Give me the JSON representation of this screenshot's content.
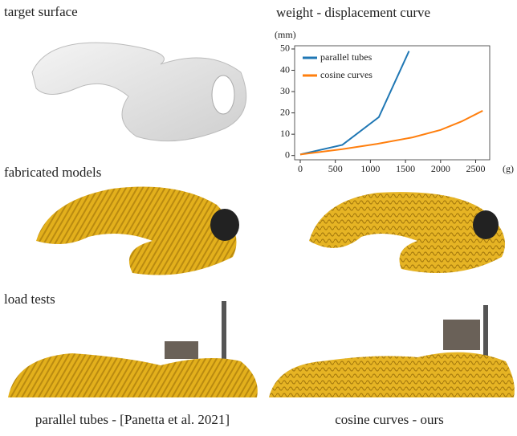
{
  "labels": {
    "target_surface": "target surface",
    "fabricated_models": "fabricated models",
    "load_tests": "load tests",
    "caption_left": "parallel tubes - [Panetta et al. 2021]",
    "caption_right": "cosine curves - ours"
  },
  "chart_data": {
    "type": "line",
    "title": "weight - displacement curve",
    "y_label": "(mm)",
    "x_label": "(g)",
    "xlim": [
      -80,
      2700
    ],
    "ylim": [
      -2,
      51.5
    ],
    "xticks": [
      0,
      500,
      1000,
      1500,
      2000,
      2500
    ],
    "yticks": [
      0,
      10,
      20,
      30,
      40,
      50
    ],
    "legend": "upper left",
    "series": [
      {
        "name": "parallel tubes",
        "color": "#1f77b4",
        "x": [
          0,
          600,
          1120,
          1550
        ],
        "values": [
          0.5,
          5,
          18,
          49
        ]
      },
      {
        "name": "cosine curves",
        "color": "#ff7f0e",
        "x": [
          0,
          600,
          1100,
          1600,
          2000,
          2300,
          2600
        ],
        "values": [
          0.5,
          3,
          5.5,
          8.5,
          12,
          16,
          21
        ]
      }
    ]
  }
}
